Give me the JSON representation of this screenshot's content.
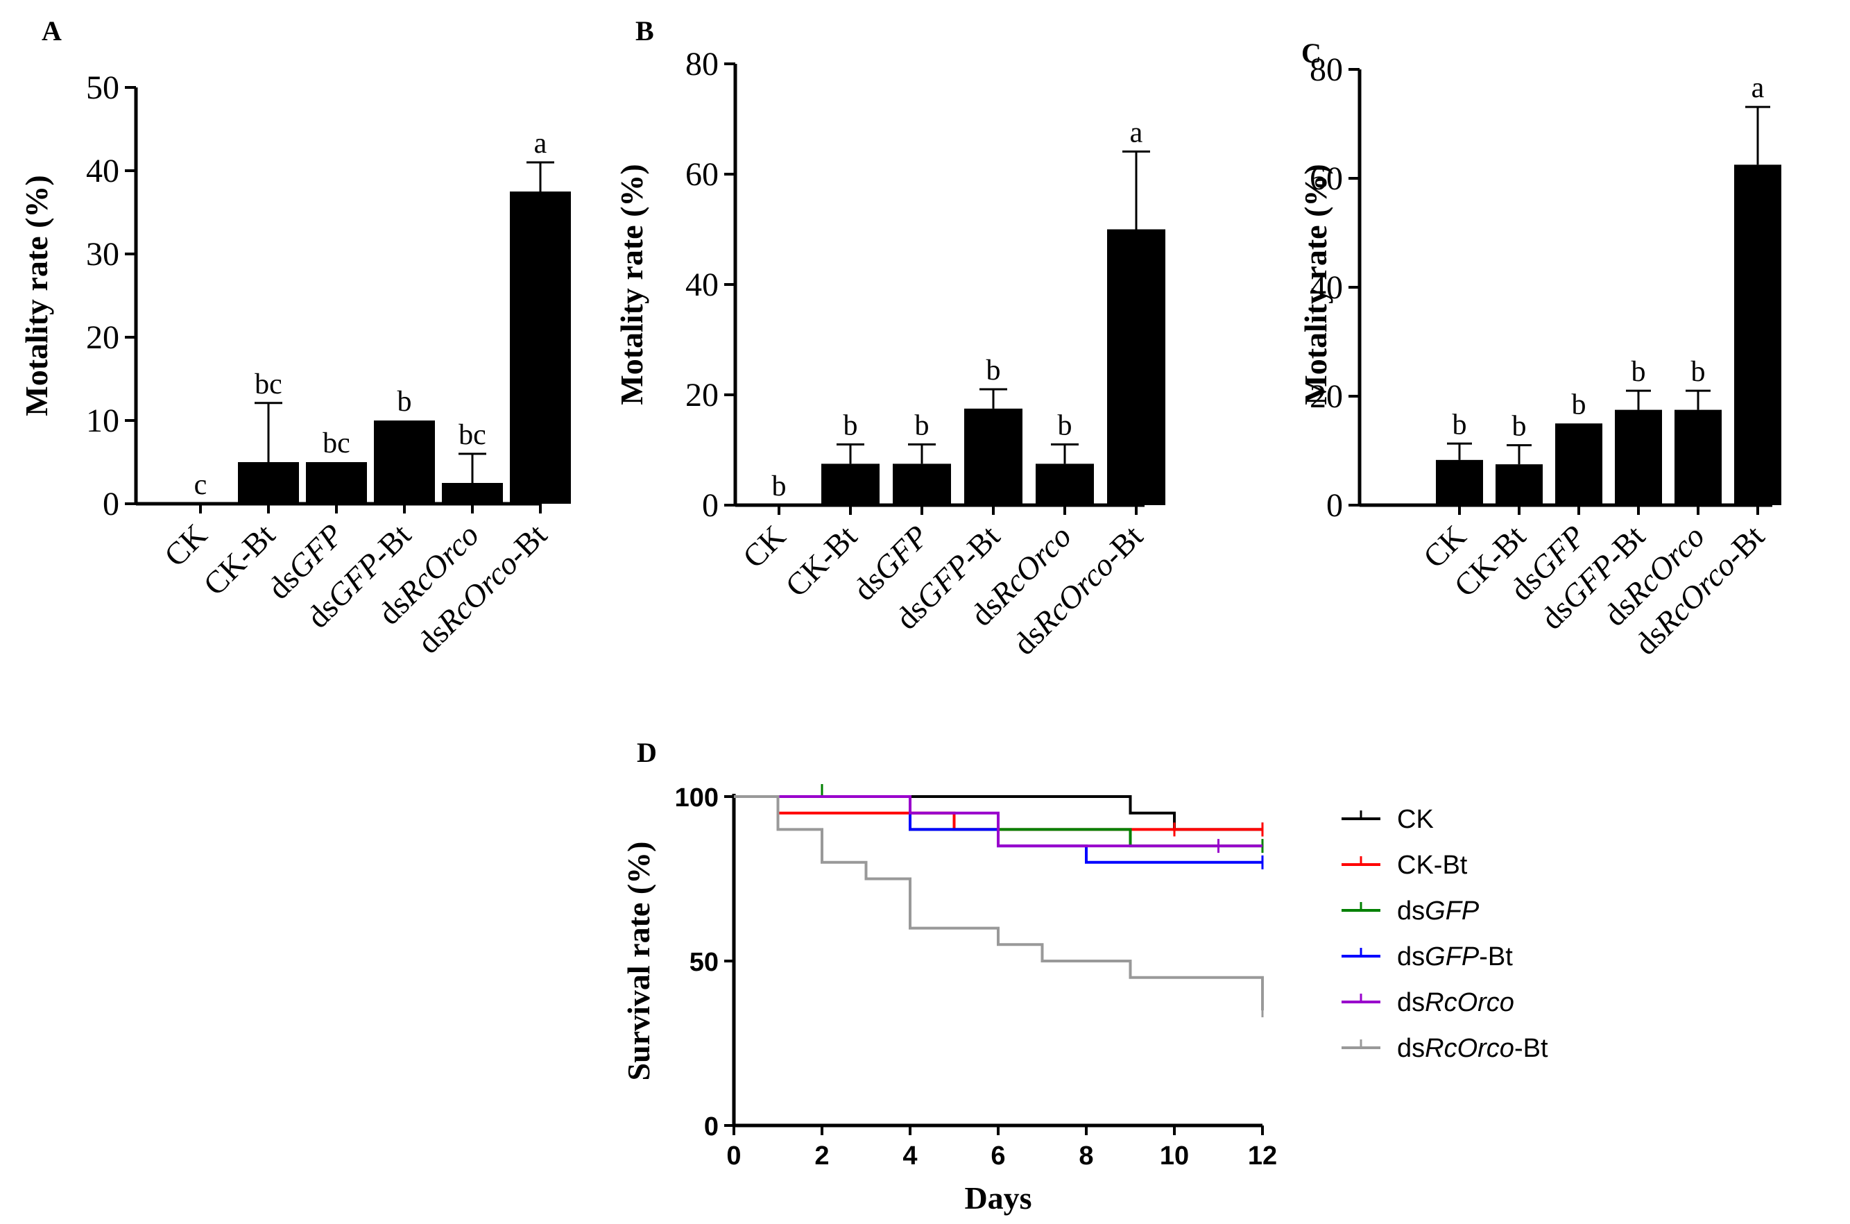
{
  "chart_data": [
    {
      "panel": "A",
      "type": "bar",
      "ylabel": "Motality rate (%)",
      "ylim": [
        0,
        50
      ],
      "yticks": [
        0,
        10,
        20,
        30,
        40,
        50
      ],
      "categories": [
        [
          {
            "t": "CK",
            "i": false
          }
        ],
        [
          {
            "t": "CK-Bt",
            "i": false
          }
        ],
        [
          {
            "t": "ds",
            "i": false
          },
          {
            "t": "GFP",
            "i": true
          }
        ],
        [
          {
            "t": "ds",
            "i": false
          },
          {
            "t": "GFP",
            "i": true
          },
          {
            "t": "-Bt",
            "i": false
          }
        ],
        [
          {
            "t": "ds",
            "i": false
          },
          {
            "t": "RcOrco",
            "i": true
          }
        ],
        [
          {
            "t": "ds",
            "i": false
          },
          {
            "t": "RcOrco",
            "i": true
          },
          {
            "t": "-Bt",
            "i": false
          }
        ]
      ],
      "values": [
        0,
        5,
        5,
        10,
        2.5,
        37.5
      ],
      "errors": [
        0,
        7.1,
        0,
        0,
        3.5,
        3.5
      ],
      "letters": [
        "c",
        "bc",
        "bc",
        "b",
        "bc",
        "a"
      ]
    },
    {
      "panel": "B",
      "type": "bar",
      "ylabel": "Motality rate (%)",
      "ylim": [
        0,
        80
      ],
      "yticks": [
        0,
        20,
        40,
        60,
        80
      ],
      "categories": [
        [
          {
            "t": "CK",
            "i": false
          }
        ],
        [
          {
            "t": "CK-Bt",
            "i": false
          }
        ],
        [
          {
            "t": "ds",
            "i": false
          },
          {
            "t": "GFP",
            "i": true
          }
        ],
        [
          {
            "t": "ds",
            "i": false
          },
          {
            "t": "GFP",
            "i": true
          },
          {
            "t": "-Bt",
            "i": false
          }
        ],
        [
          {
            "t": "ds",
            "i": false
          },
          {
            "t": "RcOrco",
            "i": true
          }
        ],
        [
          {
            "t": "ds",
            "i": false
          },
          {
            "t": "RcOrco",
            "i": true
          },
          {
            "t": "-Bt",
            "i": false
          }
        ]
      ],
      "values": [
        0,
        7.5,
        7.5,
        17.5,
        7.5,
        50
      ],
      "errors": [
        0,
        3.5,
        3.5,
        3.5,
        3.5,
        14.1
      ],
      "letters": [
        "b",
        "b",
        "b",
        "b",
        "b",
        "a"
      ]
    },
    {
      "panel": "C",
      "type": "bar",
      "ylabel": "Motality rate (%)",
      "ylim": [
        0,
        80
      ],
      "yticks": [
        0,
        20,
        40,
        60,
        80
      ],
      "categories": [
        [
          {
            "t": "CK",
            "i": false
          }
        ],
        [
          {
            "t": "CK-Bt",
            "i": false
          }
        ],
        [
          {
            "t": "ds",
            "i": false
          },
          {
            "t": "GFP",
            "i": true
          }
        ],
        [
          {
            "t": "ds",
            "i": false
          },
          {
            "t": "GFP",
            "i": true
          },
          {
            "t": "-Bt",
            "i": false
          }
        ],
        [
          {
            "t": "ds",
            "i": false
          },
          {
            "t": "RcOrco",
            "i": true
          }
        ],
        [
          {
            "t": "ds",
            "i": false
          },
          {
            "t": "RcOrco",
            "i": true
          },
          {
            "t": "-Bt",
            "i": false
          }
        ]
      ],
      "values": [
        8.3,
        7.5,
        15,
        17.5,
        17.5,
        62.5
      ],
      "errors": [
        3,
        3.5,
        0,
        3.5,
        3.5,
        10.6
      ],
      "letters": [
        "b",
        "b",
        "b",
        "b",
        "b",
        "a"
      ]
    },
    {
      "panel": "D",
      "type": "line",
      "ylabel": "Survival rate (%)",
      "xlabel": "Days",
      "xlim": [
        0,
        12
      ],
      "ylim": [
        0,
        100
      ],
      "xticks": [
        0,
        2,
        4,
        6,
        8,
        10,
        12
      ],
      "yticks": [
        0,
        50,
        100
      ],
      "series": [
        {
          "name": [
            {
              "t": "CK",
              "i": false
            }
          ],
          "color": "#000000",
          "steps": [
            [
              0,
              100
            ],
            [
              9,
              95
            ],
            [
              10,
              90
            ],
            [
              12,
              90
            ]
          ],
          "events": [
            9,
            10
          ],
          "censor": [
            12
          ]
        },
        {
          "name": [
            {
              "t": "CK-Bt",
              "i": false
            }
          ],
          "color": "#ff0000",
          "steps": [
            [
              0,
              100
            ],
            [
              1,
              95
            ],
            [
              5,
              90
            ],
            [
              10,
              90
            ],
            [
              12,
              90
            ]
          ],
          "events": [
            1,
            5
          ],
          "censor": [
            10,
            12
          ]
        },
        {
          "name": [
            {
              "t": "ds",
              "i": false
            },
            {
              "t": "GFP",
              "i": true
            }
          ],
          "color": "#008000",
          "steps": [
            [
              0,
              100
            ],
            [
              2,
              100
            ],
            [
              4,
              90
            ],
            [
              9,
              85
            ],
            [
              12,
              85
            ]
          ],
          "events": [
            2,
            4,
            9
          ],
          "censor": [
            12
          ]
        },
        {
          "name": [
            {
              "t": "ds",
              "i": false
            },
            {
              "t": "GFP",
              "i": true
            },
            {
              "t": "-Bt",
              "i": false
            }
          ],
          "color": "#0000ff",
          "steps": [
            [
              0,
              100
            ],
            [
              4,
              90
            ],
            [
              6,
              85
            ],
            [
              8,
              80
            ],
            [
              12,
              80
            ]
          ],
          "events": [
            4,
            6,
            8
          ],
          "censor": [
            12
          ]
        },
        {
          "name": [
            {
              "t": "ds",
              "i": false
            },
            {
              "t": "RcOrco",
              "i": true
            }
          ],
          "color": "#9900cc",
          "steps": [
            [
              0,
              100
            ],
            [
              4,
              95
            ],
            [
              6,
              85
            ],
            [
              11,
              85
            ],
            [
              12,
              85
            ]
          ],
          "events": [
            4,
            6
          ],
          "censor": [
            11
          ]
        },
        {
          "name": [
            {
              "t": "ds",
              "i": false
            },
            {
              "t": "RcOrco",
              "i": true
            },
            {
              "t": "-Bt",
              "i": false
            }
          ],
          "color": "#999999",
          "steps": [
            [
              0,
              100
            ],
            [
              1,
              90
            ],
            [
              2,
              80
            ],
            [
              3,
              75
            ],
            [
              4,
              60
            ],
            [
              6,
              55
            ],
            [
              7,
              50
            ],
            [
              9,
              45
            ],
            [
              12,
              45
            ],
            [
              12,
              35
            ]
          ],
          "events": [
            1,
            2,
            3,
            4,
            6,
            7,
            9
          ],
          "censor": [
            12
          ]
        }
      ]
    }
  ]
}
